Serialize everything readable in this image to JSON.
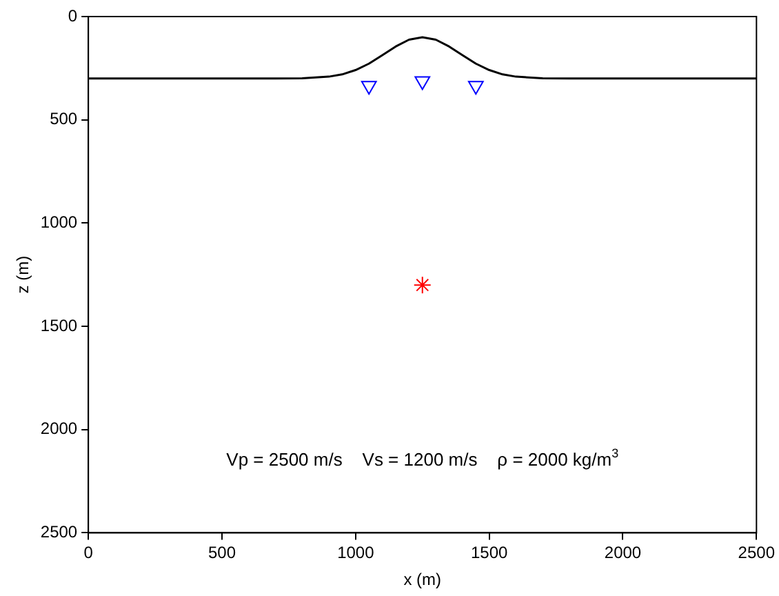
{
  "chart_data": {
    "type": "line",
    "xlabel": "x (m)",
    "ylabel": "z (m)",
    "xlim": [
      0,
      2500
    ],
    "xticks": [
      0,
      500,
      1000,
      1500,
      2000,
      2500
    ],
    "ylim": [
      2500,
      0
    ],
    "yticks": [
      0,
      500,
      1000,
      1500,
      2000,
      2500
    ],
    "grid": false,
    "legend": false,
    "annotations": [
      "Vp = 2500 m/s    Vs = 1200 m/s    ρ = 2000 kg/m$^{3}$"
    ],
    "series": [
      {
        "color": "#000000",
        "marker": "none",
        "x": [
          0,
          700,
          800,
          900,
          950,
          1000,
          1050,
          1100,
          1150,
          1200,
          1250,
          1300,
          1350,
          1400,
          1450,
          1500,
          1550,
          1600,
          1700,
          1800,
          2500
        ],
        "values": [
          300,
          300,
          299,
          291,
          280,
          259,
          228,
          187,
          145,
          112,
          100,
          112,
          145,
          187,
          228,
          259,
          280,
          291,
          299,
          300,
          300
        ]
      },
      {
        "type": "scatter",
        "color": "#0000ff",
        "marker": "triangle",
        "x": [
          1050,
          1250,
          1450
        ],
        "values": [
          335,
          312,
          335
        ]
      },
      {
        "type": "scatter",
        "color": "#ff0000",
        "marker": "cross",
        "x": [
          1250
        ],
        "values": [
          1300
        ]
      }
    ]
  }
}
